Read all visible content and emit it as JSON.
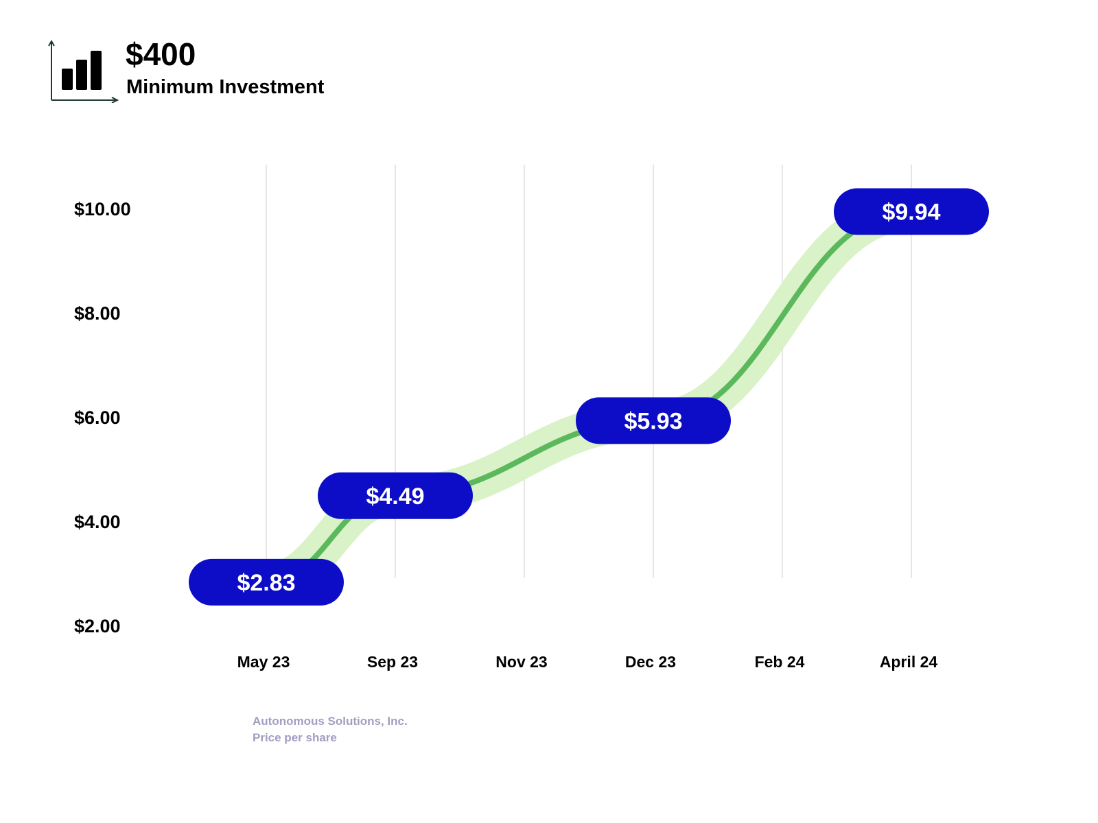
{
  "header": {
    "icon": "bar-chart-icon",
    "amount": "$400",
    "subtitle": "Minimum Investment"
  },
  "chart_data": {
    "type": "line",
    "categories": [
      "May 23",
      "Sep 23",
      "Nov 23",
      "Dec 23",
      "Feb 24",
      "April 24"
    ],
    "points": [
      {
        "x": "May 23",
        "value": 2.83,
        "label": "$2.83"
      },
      {
        "x": "Sep 23",
        "value": 4.49,
        "label": "$4.49"
      },
      {
        "x": "Dec 23",
        "value": 5.93,
        "label": "$5.93"
      },
      {
        "x": "April 24",
        "value": 9.94,
        "label": "$9.94"
      }
    ],
    "ytick_labels": [
      "$2.00",
      "$4.00",
      "$6.00",
      "$8.00",
      "$10.00"
    ],
    "ylim": [
      2,
      10
    ],
    "grid": "vertical",
    "colors": {
      "line": "#5cb85c",
      "band": "#d9f2c8",
      "pill": "#0d0dc8",
      "grid": "#e6e6e6"
    }
  },
  "footer": {
    "company": "Autonomous Solutions, Inc.",
    "caption": "Price per share"
  }
}
